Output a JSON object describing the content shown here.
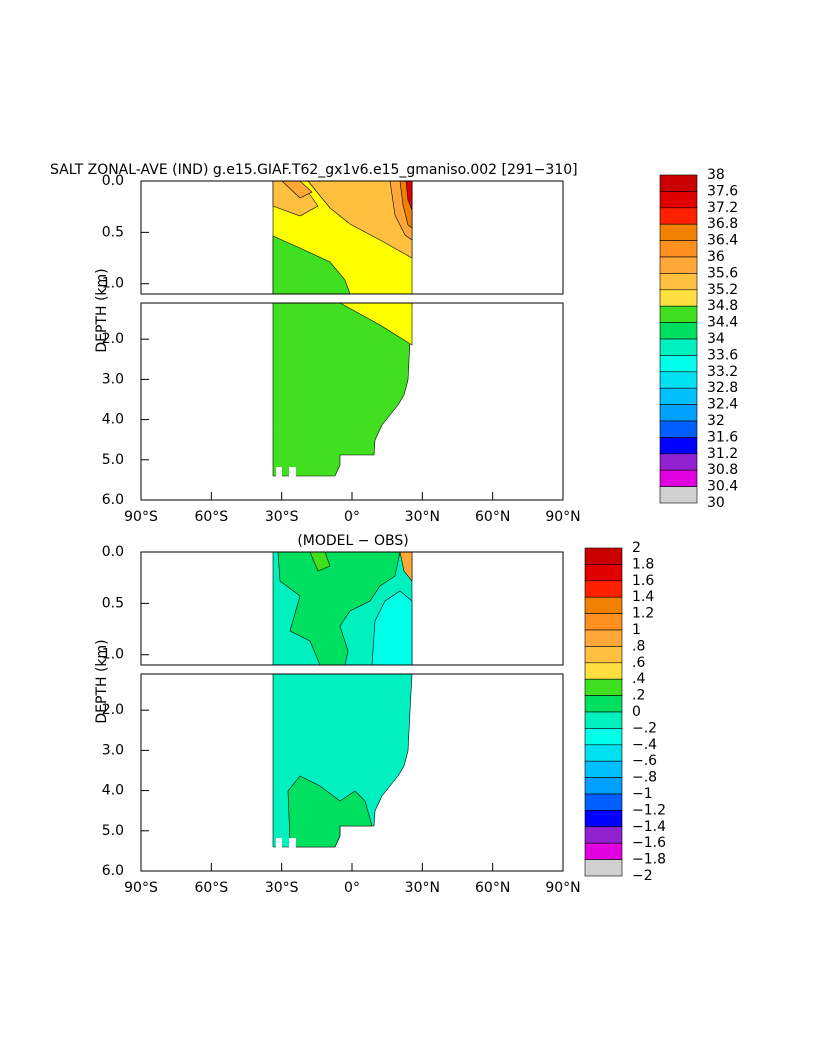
{
  "chart_data": [
    {
      "type": "contour",
      "title": "SALT ZONAL-AVE (IND) g.e15.GIAF.T62_gx1v6.e15_gmaniso.002 [291−310]",
      "ylabel": "DEPTH (km)",
      "xlim": [
        -90,
        90
      ],
      "xticks": [
        {
          "value": -90,
          "label": "90°S"
        },
        {
          "value": -60,
          "label": "60°S"
        },
        {
          "value": -30,
          "label": "30°S"
        },
        {
          "value": 0,
          "label": "0°"
        },
        {
          "value": 30,
          "label": "30°N"
        },
        {
          "value": 60,
          "label": "60°N"
        },
        {
          "value": 90,
          "label": "90°N"
        }
      ],
      "ylim": [
        0,
        6
      ],
      "axis_break": 1.1,
      "yticks": [
        {
          "value": 0,
          "label": "0.0"
        },
        0.5,
        {
          "value": 1,
          "label": "1.0"
        },
        {
          "value": 2,
          "label": "2.0"
        },
        {
          "value": 3,
          "label": "3.0"
        },
        {
          "value": 4,
          "label": "4.0"
        },
        {
          "value": 5,
          "label": "5.0"
        },
        {
          "value": 6,
          "label": "6.0"
        }
      ],
      "levels": [
        38,
        37.6,
        37.2,
        36.8,
        36.4,
        36,
        35.6,
        35.2,
        34.8,
        34.4,
        34,
        33.6,
        33.2,
        32.8,
        32.4,
        32,
        31.6,
        31.2,
        30.8,
        30.4,
        30
      ],
      "colors": [
        "#c80000",
        "#e00000",
        "#ff2000",
        "#f08000",
        "#ff9020",
        "#ffa838",
        "#ffc040",
        "#ffe040",
        "#ffff00",
        "#40e020",
        "#00e060",
        "#00f0c0",
        "#00ffe8",
        "#00e0f0",
        "#00c0ff",
        "#00a0ff",
        "#0060ff",
        "#0000ff",
        "#9020d0",
        "#e000e0",
        "#d0d0d0",
        "#707070"
      ]
    },
    {
      "type": "contour",
      "title": "(MODEL − OBS)",
      "ylabel": "DEPTH (km)",
      "xlim": [
        -90,
        90
      ],
      "xticks": [
        {
          "value": -90,
          "label": "90°S"
        },
        {
          "value": -60,
          "label": "60°S"
        },
        {
          "value": -30,
          "label": "30°S"
        },
        {
          "value": 0,
          "label": "0°"
        },
        {
          "value": 30,
          "label": "30°N"
        },
        {
          "value": 60,
          "label": "60°N"
        },
        {
          "value": 90,
          "label": "90°N"
        }
      ],
      "ylim": [
        0,
        6
      ],
      "axis_break": 1.1,
      "yticks": [
        {
          "value": 0,
          "label": "0.0"
        },
        0.5,
        {
          "value": 1,
          "label": "1.0"
        },
        {
          "value": 2,
          "label": "2.0"
        },
        {
          "value": 3,
          "label": "3.0"
        },
        {
          "value": 4,
          "label": "4.0"
        },
        {
          "value": 5,
          "label": "5.0"
        },
        {
          "value": 6,
          "label": "6.0"
        }
      ],
      "levels": [
        2,
        1.8,
        1.6,
        1.4,
        1.2,
        1,
        {
          "value": 0.8,
          "label": ".8"
        },
        {
          "value": 0.6,
          "label": ".6"
        },
        {
          "value": 0.4,
          "label": ".4"
        },
        {
          "value": 0.2,
          "label": ".2"
        },
        0,
        {
          "value": -0.2,
          "label": "−.2"
        },
        {
          "value": -0.4,
          "label": "−.4"
        },
        {
          "value": -0.6,
          "label": "−.6"
        },
        {
          "value": -0.8,
          "label": "−.8"
        },
        {
          "value": -1,
          "label": "−1"
        },
        {
          "value": -1.2,
          "label": "−1.2"
        },
        {
          "value": -1.4,
          "label": "−1.4"
        },
        {
          "value": -1.6,
          "label": "−1.6"
        },
        {
          "value": -1.8,
          "label": "−1.8"
        },
        {
          "value": -2,
          "label": "−2"
        }
      ],
      "colors": [
        "#c80000",
        "#e00000",
        "#ff2000",
        "#f08000",
        "#ff9020",
        "#ffa838",
        "#ffc040",
        "#ffe040",
        "#ffff00",
        "#40e020",
        "#00e060",
        "#00f0c0",
        "#00ffe8",
        "#00e0f0",
        "#00c0ff",
        "#00a0ff",
        "#0060ff",
        "#0000ff",
        "#9020d0",
        "#e000e0",
        "#d0d0d0",
        "#707070"
      ]
    }
  ]
}
